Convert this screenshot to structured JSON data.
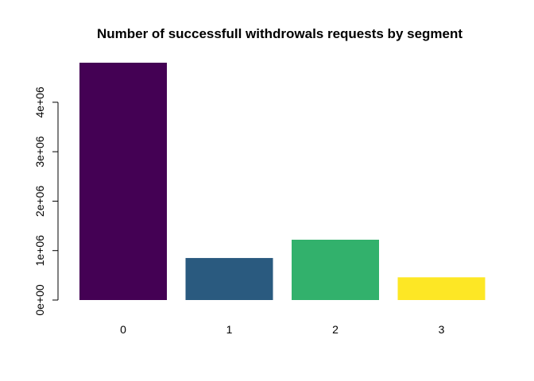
{
  "chart_data": {
    "type": "bar",
    "title": "Number of successfull withdrowals requests by segment",
    "xlabel": "",
    "ylabel": "",
    "categories": [
      "0",
      "1",
      "2",
      "3"
    ],
    "values": [
      4800000,
      850000,
      1220000,
      460000
    ],
    "colors": [
      "#440154",
      "#2A5A7F",
      "#32B16C",
      "#FDE725"
    ],
    "ylim": [
      0,
      4800000
    ],
    "yticks": [
      0,
      1000000,
      2000000,
      3000000,
      4000000
    ],
    "ytick_labels": [
      "0e+00",
      "1e+06",
      "2e+06",
      "3e+06",
      "4e+06"
    ],
    "grid": false,
    "legend": "none"
  }
}
